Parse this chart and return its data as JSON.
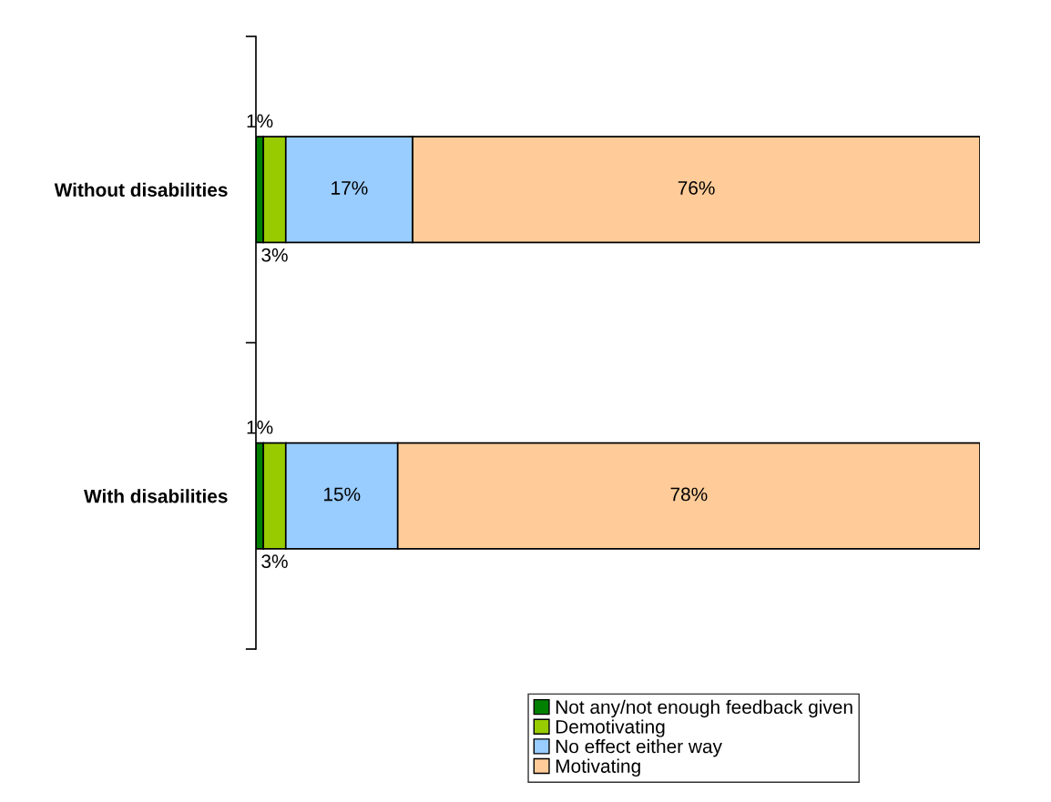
{
  "chart_data": {
    "type": "bar",
    "orientation": "horizontal",
    "stacked": true,
    "categories": [
      "Without disabilities",
      "With disabilities"
    ],
    "series": [
      {
        "name": "Not any/not enough feedback given",
        "color": "#008000",
        "values": [
          1,
          1
        ],
        "value_labels": [
          "1%",
          "1%"
        ]
      },
      {
        "name": "Demotivating",
        "color": "#99cc00",
        "values": [
          3,
          3
        ],
        "value_labels": [
          "3%",
          "3%"
        ]
      },
      {
        "name": "No effect either way",
        "color": "#99ccff",
        "values": [
          17,
          15
        ],
        "value_labels": [
          "17%",
          "15%"
        ]
      },
      {
        "name": "Motivating",
        "color": "#ffcc99",
        "values": [
          76,
          78
        ],
        "value_labels": [
          "76%",
          "78%"
        ]
      }
    ],
    "tick_labels": "y",
    "grid": false,
    "legend": "bottom"
  }
}
